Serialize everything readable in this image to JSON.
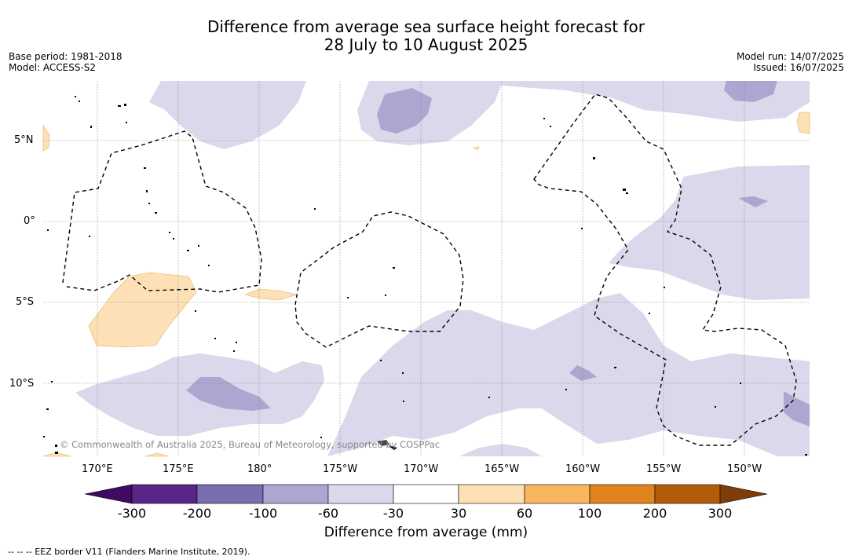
{
  "title": {
    "line1": "Difference from average sea surface height forecast for",
    "line2": "28 July to 10 August 2025"
  },
  "meta_left": {
    "base_period": "Base period: 1981-2018",
    "model": "Model: ACCESS-S2"
  },
  "meta_right": {
    "model_run": "Model run: 14/07/2025",
    "issued": "Issued: 16/07/2025"
  },
  "map": {
    "lat_labels": [
      "5°N",
      "0°",
      "5°S",
      "10°S"
    ],
    "lon_labels": [
      "170°E",
      "175°E",
      "180°",
      "175°W",
      "170°W",
      "165°W",
      "160°W",
      "155°W",
      "150°W"
    ],
    "copyright": "© Commonwealth of Australia 2025, Bureau of Meteorology, supported by COSPPac",
    "colors": {
      "grid": "#888888",
      "eez_border": "#000000",
      "land": "#000000"
    }
  },
  "colorbar": {
    "ticks": [
      "-300",
      "-200",
      "-100",
      "-60",
      "-30",
      "30",
      "60",
      "100",
      "200",
      "300"
    ],
    "colors": [
      "#3f0a60",
      "#582588",
      "#7b6eae",
      "#aca6d1",
      "#d9d9eb",
      "#ffffff",
      "#fde0b6",
      "#f8b660",
      "#e0831c",
      "#b25c0b",
      "#7d3c08"
    ],
    "label": "Difference from average (mm)"
  },
  "legend": {
    "eez": "--  --  -- EEZ border V11 (Flanders Marine Institute, 2019)."
  }
}
